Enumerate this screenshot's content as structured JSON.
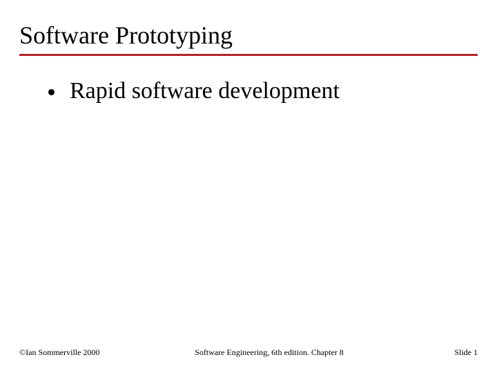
{
  "colors": {
    "rule": "#b0252a",
    "bullet": "#000000",
    "text": "#000000",
    "background": "#ffffff"
  },
  "title": "Software Prototyping",
  "bullets": [
    {
      "text": "Rapid software development"
    }
  ],
  "footer": {
    "left": "©Ian Sommerville 2000",
    "center": "Software Engineering, 6th edition. Chapter 8",
    "right_prefix": "Slide ",
    "slide_number": "1"
  }
}
